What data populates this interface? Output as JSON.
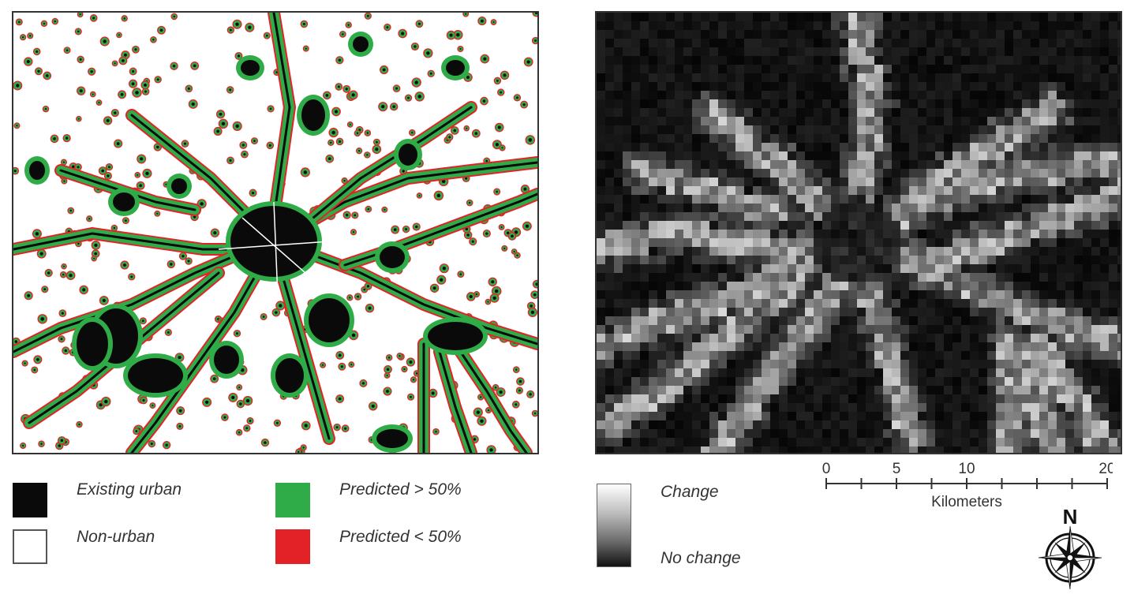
{
  "left_legend": {
    "existing_urban": {
      "label": "Existing urban",
      "color": "#0a0a0a"
    },
    "non_urban": {
      "label": "Non-urban",
      "color": "#ffffff"
    },
    "predicted_high": {
      "label": "Predicted > 50%",
      "color": "#2fac48"
    },
    "predicted_low": {
      "label": "Predicted < 50%",
      "color": "#e32228"
    }
  },
  "right_legend": {
    "change_label": "Change",
    "no_change_label": "No change"
  },
  "scale_bar": {
    "ticks": [
      "0",
      "5",
      "10",
      "20"
    ],
    "unit": "Kilometers"
  },
  "north_arrow": {
    "label": "N",
    "icon": "compass-rose-icon"
  }
}
